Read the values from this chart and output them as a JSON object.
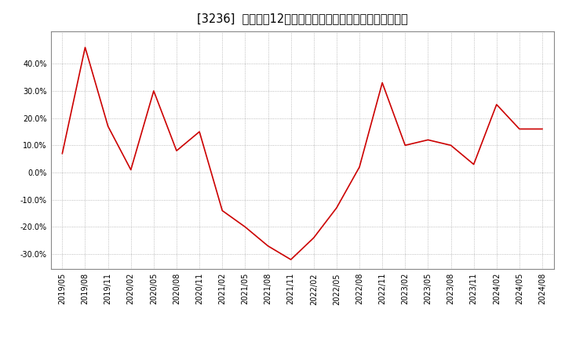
{
  "title": "[3236]  売上高の12か月移動合計の対前年同期増減率の推移",
  "x_labels": [
    "2019/05",
    "2019/08",
    "2019/11",
    "2020/02",
    "2020/05",
    "2020/08",
    "2020/11",
    "2021/02",
    "2021/05",
    "2021/08",
    "2021/11",
    "2022/02",
    "2022/05",
    "2022/08",
    "2022/11",
    "2023/02",
    "2023/05",
    "2023/08",
    "2023/11",
    "2024/02",
    "2024/05",
    "2024/08"
  ],
  "y_values": [
    0.07,
    0.46,
    0.17,
    0.01,
    0.3,
    0.08,
    0.15,
    -0.14,
    -0.2,
    -0.27,
    -0.32,
    -0.24,
    -0.13,
    0.02,
    0.33,
    0.1,
    0.12,
    0.1,
    0.03,
    0.25,
    0.16,
    0.16
  ],
  "line_color": "#cc0000",
  "background_color": "#ffffff",
  "grid_color": "#aaaaaa",
  "ylim": [
    -0.355,
    0.52
  ],
  "yticks": [
    -0.3,
    -0.2,
    -0.1,
    0.0,
    0.1,
    0.2,
    0.3,
    0.4
  ],
  "title_fontsize": 10.5,
  "tick_fontsize": 7
}
